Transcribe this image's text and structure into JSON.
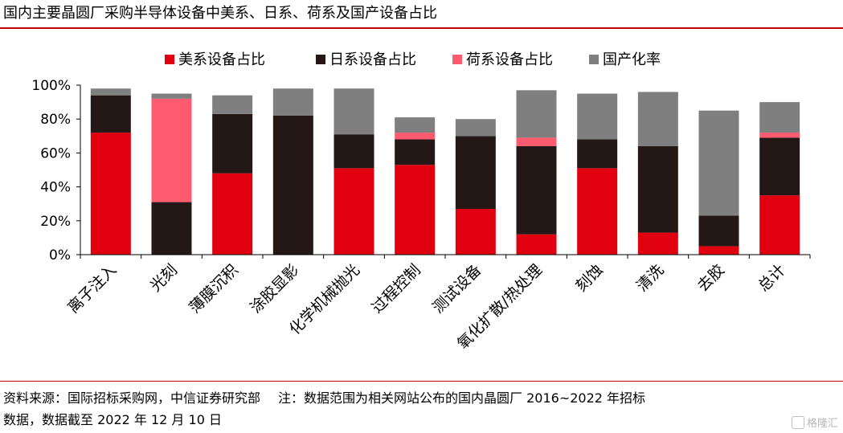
{
  "header": {
    "title": "国内主要晶圆厂采购半导体设备中美系、日系、荷系及国产设备占比"
  },
  "footer": {
    "source": "资料来源：国际招标采购网，中信证券研究部",
    "note_line1": "注：数据范围为相关网站公布的国内晶圆厂 2016~2022 年招标",
    "note_line2": "数据，数据截至 2022 年 12 月 10 日",
    "watermark": "格隆汇"
  },
  "colors": {
    "us": "#e0000f",
    "jp": "#231815",
    "nl": "#ff5a6e",
    "cn": "#7f7f7f",
    "accent_rule": "#c00000"
  },
  "chart_data": {
    "type": "bar",
    "stacked": true,
    "title": "国内主要晶圆厂采购半导体设备中美系、日系、荷系及国产设备占比",
    "xlabel": "",
    "ylabel": "",
    "ylim": [
      0,
      100
    ],
    "yticks": [
      "0%",
      "20%",
      "40%",
      "60%",
      "80%",
      "100%"
    ],
    "legend_position": "top-center",
    "categories": [
      "离子注入",
      "光刻",
      "薄膜沉积",
      "涂胶显影",
      "化学机械抛光",
      "过程控制",
      "测试设备",
      "氧化扩散/热处理",
      "刻蚀",
      "清洗",
      "去胶",
      "总计"
    ],
    "series": [
      {
        "name": "美系设备占比",
        "color": "#e0000f",
        "values": [
          72,
          0,
          48,
          0,
          51,
          53,
          27,
          12,
          51,
          13,
          5,
          35
        ]
      },
      {
        "name": "日系设备占比",
        "color": "#231815",
        "values": [
          22,
          31,
          35,
          82,
          20,
          15,
          43,
          52,
          17,
          51,
          18,
          34
        ]
      },
      {
        "name": "荷系设备占比",
        "color": "#ff5a6e",
        "values": [
          0,
          61,
          0,
          0,
          0,
          4,
          0,
          5,
          0,
          0,
          0,
          3
        ]
      },
      {
        "name": "国产化率",
        "color": "#7f7f7f",
        "values": [
          4,
          3,
          11,
          16,
          27,
          9,
          10,
          28,
          27,
          32,
          62,
          18
        ]
      }
    ]
  }
}
